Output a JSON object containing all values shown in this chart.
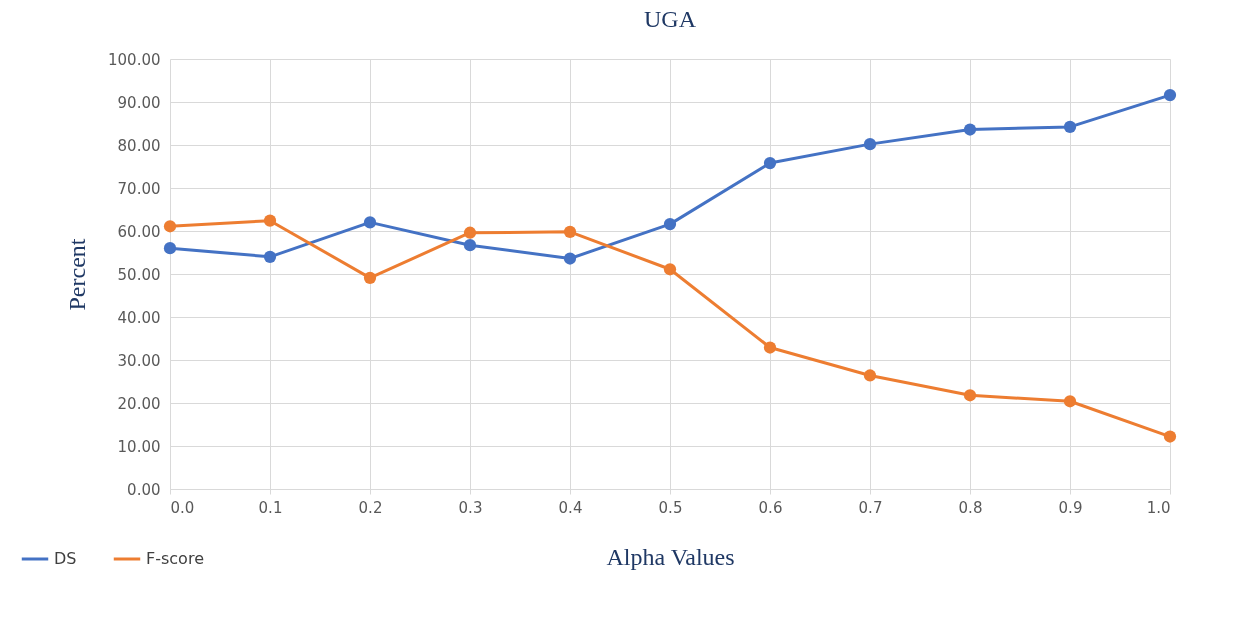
{
  "chart_data": {
    "type": "line",
    "title": "UGA",
    "xlabel": "Alpha Values",
    "ylabel": "Percent",
    "x": [
      0.0,
      0.1,
      0.2,
      0.3,
      0.4,
      0.5,
      0.6,
      0.7,
      0.8,
      0.9,
      1.0
    ],
    "series": [
      {
        "name": "DS",
        "color": "#4472c4",
        "values": [
          56.0,
          54.0,
          62.0,
          56.7,
          53.6,
          61.6,
          75.8,
          80.2,
          83.6,
          84.2,
          91.6
        ]
      },
      {
        "name": "F-score",
        "color": "#ed7d31",
        "values": [
          61.1,
          62.4,
          49.1,
          59.6,
          59.8,
          51.1,
          32.9,
          26.4,
          21.8,
          20.4,
          12.2
        ]
      }
    ],
    "xlim": [
      0,
      1
    ],
    "xticks": [
      {
        "value": 0,
        "label": "0.0"
      },
      {
        "value": 0.1,
        "label": "0.1"
      },
      {
        "value": 0.2,
        "label": "0.2"
      },
      {
        "value": 0.3,
        "label": "0.3"
      },
      {
        "value": 0.4,
        "label": "0.4"
      },
      {
        "value": 0.5,
        "label": "0.5"
      },
      {
        "value": 0.6,
        "label": "0.6"
      },
      {
        "value": 0.7,
        "label": "0.7"
      },
      {
        "value": 0.8,
        "label": "0.8"
      },
      {
        "value": 0.9,
        "label": "0.9"
      },
      {
        "value": 1,
        "label": "1.0"
      }
    ],
    "ylim": [
      0,
      100
    ],
    "yticks": [
      {
        "value": 0,
        "label": "0.00"
      },
      {
        "value": 10,
        "label": "10.00"
      },
      {
        "value": 20,
        "label": "20.00"
      },
      {
        "value": 30,
        "label": "30.00"
      },
      {
        "value": 40,
        "label": "40.00"
      },
      {
        "value": 50,
        "label": "50.00"
      },
      {
        "value": 60,
        "label": "60.00"
      },
      {
        "value": 70,
        "label": "70.00"
      },
      {
        "value": 80,
        "label": "80.00"
      },
      {
        "value": 90,
        "label": "90.00"
      },
      {
        "value": 100,
        "label": "100.00"
      }
    ],
    "grid": true,
    "legend": "bottom left",
    "marker": "circle",
    "line_style": "solid"
  }
}
